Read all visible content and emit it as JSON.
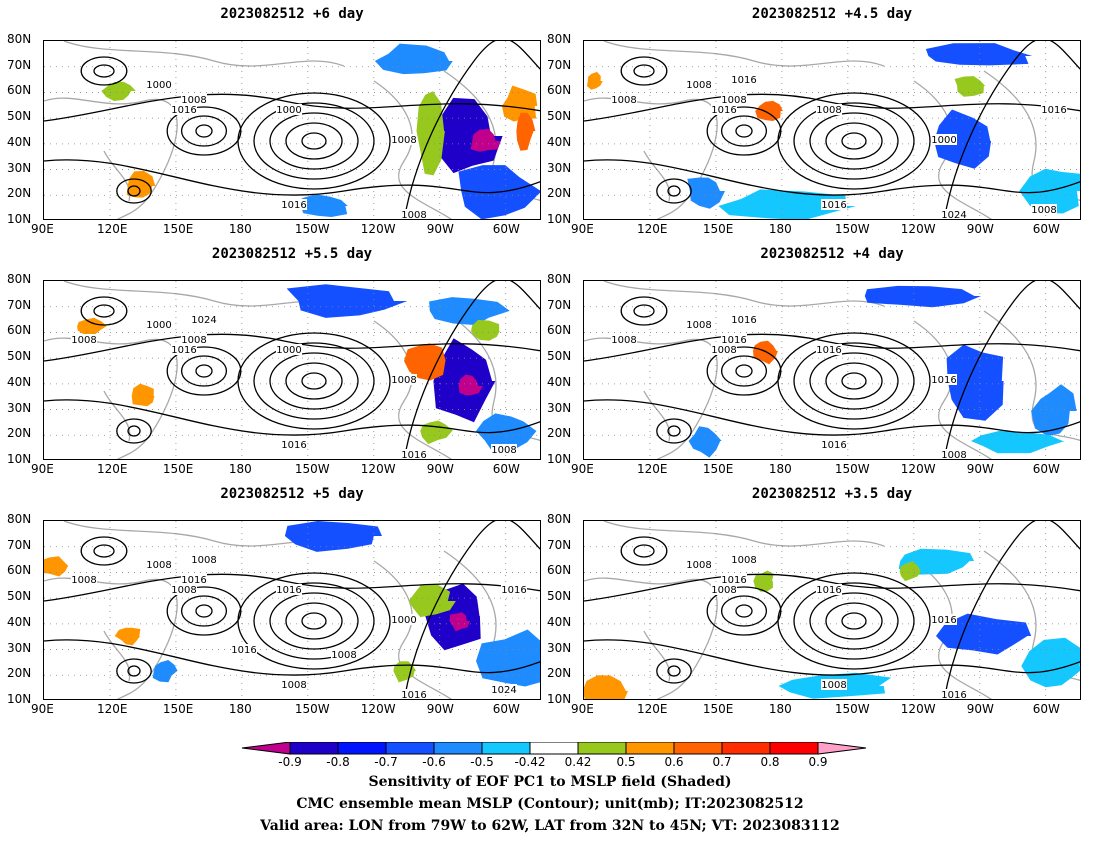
{
  "panels": [
    {
      "title": "2023082512  +6 day",
      "contours": [
        "1000",
        "1008",
        "1016",
        "1000",
        "1008",
        "1016",
        "1008"
      ]
    },
    {
      "title": "2023082512  +4.5 day",
      "contours": [
        "1008",
        "1008",
        "1016",
        "1008",
        "1000",
        "1016",
        "1024",
        "1016",
        "1008",
        "1008",
        "1016"
      ]
    },
    {
      "title": "2023082512  +5.5 day",
      "contours": [
        "1000",
        "1008",
        "1016",
        "1000",
        "1008",
        "1016",
        "1016",
        "1024",
        "1008",
        "1008"
      ]
    },
    {
      "title": "2023082512  +4 day",
      "contours": [
        "1008",
        "1016",
        "1008",
        "1016",
        "1016",
        "1016",
        "1008",
        "1016",
        "1008"
      ]
    },
    {
      "title": "2023082512  +5 day",
      "contours": [
        "1008",
        "1016",
        "1008",
        "1016",
        "1000",
        "1008",
        "1016",
        "1008",
        "1008",
        "1024",
        "1016",
        "1008",
        "1016"
      ]
    },
    {
      "title": "2023082512  +3.5 day",
      "contours": [
        "1008",
        "1016",
        "1008",
        "1016",
        "1016",
        "1008",
        "1016",
        "1008"
      ]
    }
  ],
  "axes": {
    "lat_labels": [
      "80N",
      "70N",
      "60N",
      "50N",
      "40N",
      "30N",
      "20N",
      "10N"
    ],
    "lon_labels": [
      "90E",
      "120E",
      "150E",
      "180",
      "150W",
      "120W",
      "90W",
      "60W"
    ]
  },
  "colorbar": {
    "labels": [
      "-0.9",
      "-0.8",
      "-0.7",
      "-0.6",
      "-0.5",
      "-0.42",
      "0.42",
      "0.5",
      "0.6",
      "0.7",
      "0.8",
      "0.9"
    ],
    "colors": [
      "#c0008c",
      "#1e00c8",
      "#0014ff",
      "#1450ff",
      "#1e8cff",
      "#14c8ff",
      "#ffffff",
      "#96c81e",
      "#ff9600",
      "#ff6400",
      "#ff2d00",
      "#ff0000",
      "#ffa0c8"
    ]
  },
  "footer": {
    "line1": "Sensitivity of EOF PC1 to MSLP field (Shaded)",
    "line2": "CMC ensemble mean MSLP (Contour); unit(mb); IT:2023082512",
    "line3": "Valid area: LON from 79W to 62W, LAT from 32N to 45N; VT: 2023083112"
  }
}
